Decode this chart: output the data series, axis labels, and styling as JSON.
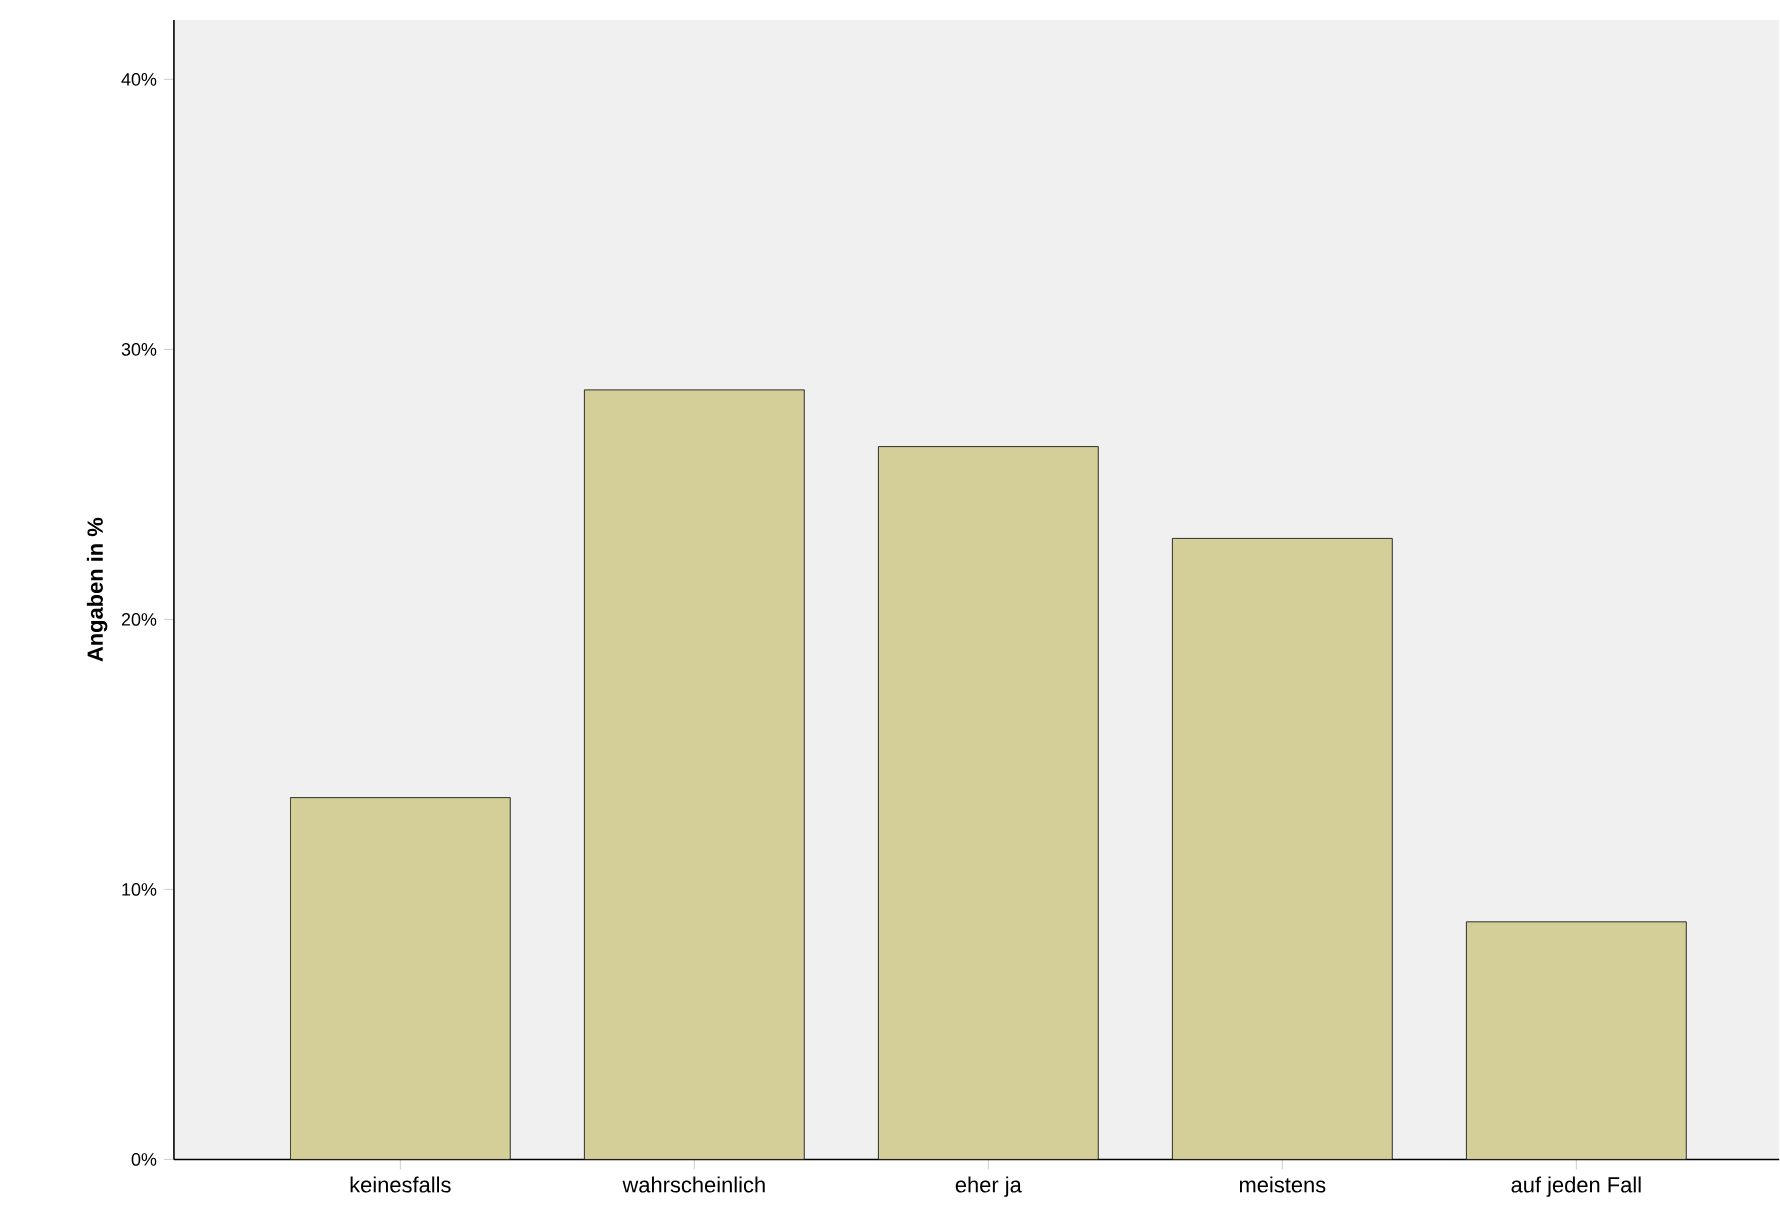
{
  "chart_data": {
    "type": "bar",
    "ylabel": "Angaben in %",
    "categories": [
      "keinesfalls",
      "wahrscheinlich",
      "eher ja",
      "meistens",
      "auf jeden Fall"
    ],
    "values": [
      13.4,
      28.5,
      26.4,
      23.0,
      8.8
    ],
    "color": "#d4cf99",
    "ylim": [
      0,
      42.2
    ],
    "yticks": [
      {
        "value": 0,
        "label": "0%"
      },
      {
        "value": 10,
        "label": "10%"
      },
      {
        "value": 20,
        "label": "20%"
      },
      {
        "value": 30,
        "label": "30%"
      },
      {
        "value": 40,
        "label": "40%"
      }
    ],
    "grid": false
  }
}
